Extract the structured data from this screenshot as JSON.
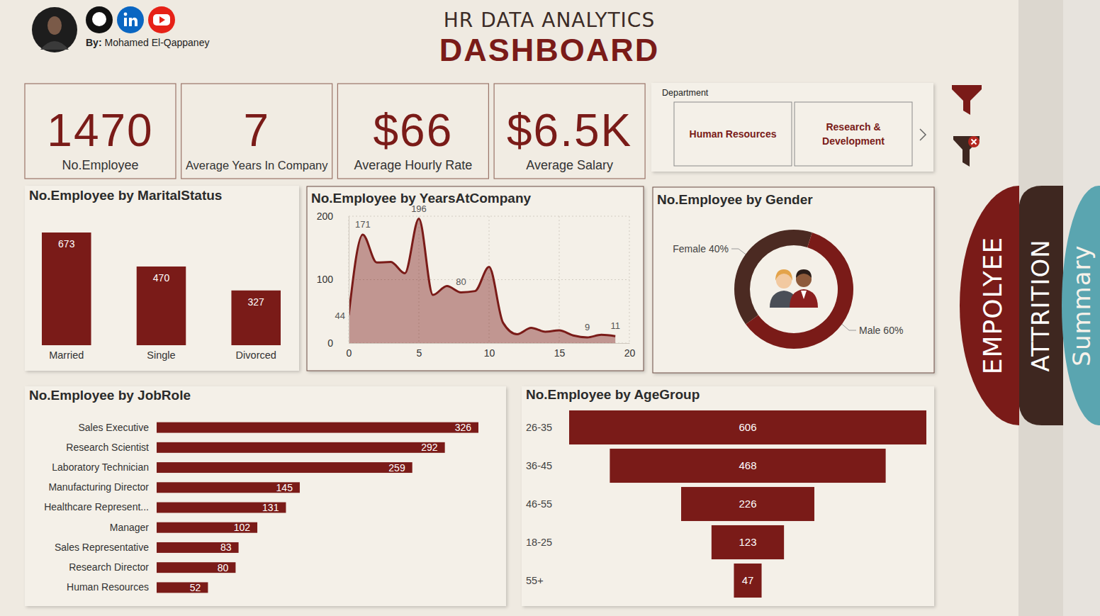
{
  "header": {
    "title": "HR DATA ANALYTICS",
    "subtitle": "DASHBOARD",
    "author_prefix": "By:",
    "author": "Mohamed El-Qappaney"
  },
  "kpis": [
    {
      "value": "1470",
      "label": "No.Employee"
    },
    {
      "value": "7",
      "label": "Average Years In Company"
    },
    {
      "value": "$66",
      "label": "Average Hourly Rate"
    },
    {
      "value": "$6.5K",
      "label": "Average Salary"
    }
  ],
  "slicer": {
    "title": "Department",
    "options": [
      "Human Resources",
      "Research & Development"
    ]
  },
  "tabs": [
    "EMPOLYEE",
    "ATTRITION",
    "Summary"
  ],
  "chart_data": [
    {
      "type": "bar",
      "title": "No.Employee by MaritalStatus",
      "categories": [
        "Married",
        "Single",
        "Divorced"
      ],
      "values": [
        673,
        470,
        327
      ],
      "color": "#7a1b18",
      "data_labels": true,
      "tick_labels": "x"
    },
    {
      "type": "area",
      "title": "No.Employee by YearsAtCompany",
      "x": [
        0,
        1,
        2,
        3,
        4,
        5,
        6,
        7,
        8,
        9,
        10,
        11,
        12,
        13,
        14,
        15,
        16,
        17,
        18,
        19
      ],
      "values": [
        44,
        171,
        127,
        128,
        110,
        196,
        76,
        90,
        80,
        82,
        120,
        32,
        14,
        24,
        18,
        20,
        12,
        9,
        13,
        11
      ],
      "value_labels": [
        "44",
        "171",
        null,
        null,
        null,
        "196",
        null,
        null,
        "80",
        null,
        null,
        null,
        null,
        null,
        null,
        null,
        null,
        "9",
        null,
        "11"
      ],
      "color": "#7a1b18",
      "xlim": [
        0,
        20
      ],
      "xticks": [
        0,
        5,
        10,
        15,
        20
      ],
      "ylim": [
        0,
        200
      ],
      "yticks": [
        0,
        100,
        200
      ],
      "grid": true,
      "data_labels": true
    },
    {
      "type": "pie",
      "title": "No.Employee by Gender",
      "categories": [
        "Female",
        "Male"
      ],
      "values": [
        40,
        60
      ],
      "value_labels": [
        "40%",
        "60%"
      ],
      "colors": [
        "#4b2a22",
        "#7a1b18"
      ],
      "data_labels": true
    },
    {
      "type": "bar",
      "orientation": "horizontal",
      "title": "No.Employee by JobRole",
      "categories": [
        "Sales Executive",
        "Research Scientist",
        "Laboratory Technician",
        "Manufacturing Director",
        "Healthcare Represent...",
        "Manager",
        "Sales Representative",
        "Research Director",
        "Human Resources"
      ],
      "values": [
        326,
        292,
        259,
        145,
        131,
        102,
        83,
        80,
        52
      ],
      "color": "#7a1b18",
      "data_labels": true,
      "tick_labels": "y"
    },
    {
      "type": "funnel",
      "title": "No.Employee by AgeGroup",
      "categories": [
        "26-35",
        "36-45",
        "46-55",
        "18-25",
        "55+"
      ],
      "values": [
        606,
        468,
        226,
        123,
        47
      ],
      "color": "#7a1b18",
      "data_labels": true
    }
  ]
}
